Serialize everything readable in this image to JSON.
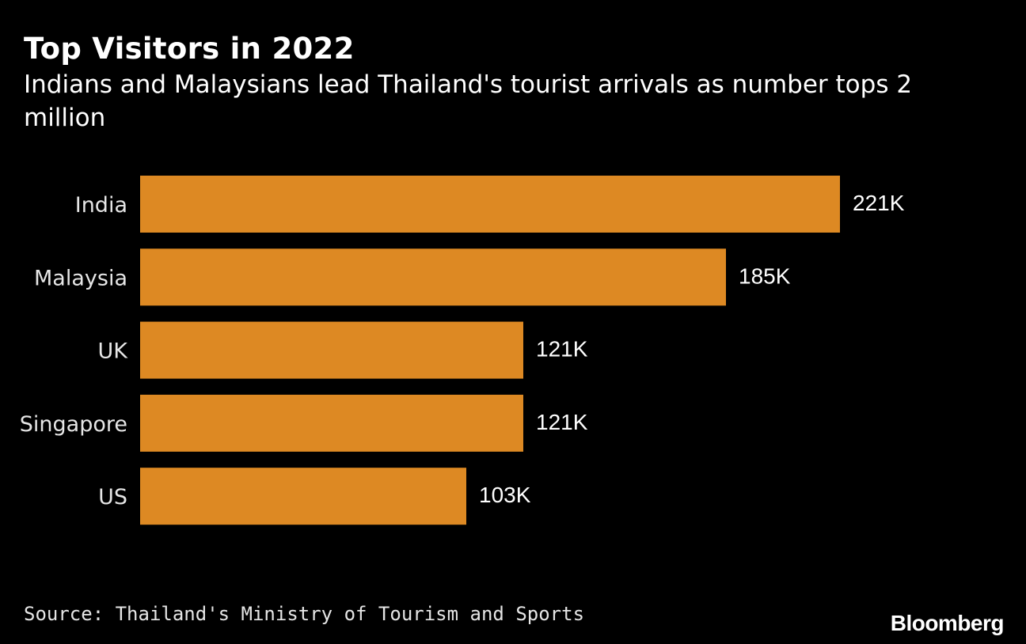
{
  "chart_data": {
    "type": "bar",
    "orientation": "horizontal",
    "title": "Top Visitors in 2022",
    "subtitle": "Indians and Malaysians lead Thailand's tourist arrivals as number tops 2 million",
    "categories": [
      "India",
      "Malaysia",
      "UK",
      "Singapore",
      "US"
    ],
    "values": [
      221,
      185,
      121,
      121,
      103
    ],
    "value_labels": [
      "221K",
      "185K",
      "121K",
      "121K",
      "103K"
    ],
    "unit": "K",
    "xlim": [
      0,
      221
    ],
    "grid": false,
    "legend": "none",
    "bar_color": "#dd8923"
  },
  "footer": {
    "source": "Source: Thailand's Ministry of Tourism and Sports",
    "brand": "Bloomberg"
  }
}
